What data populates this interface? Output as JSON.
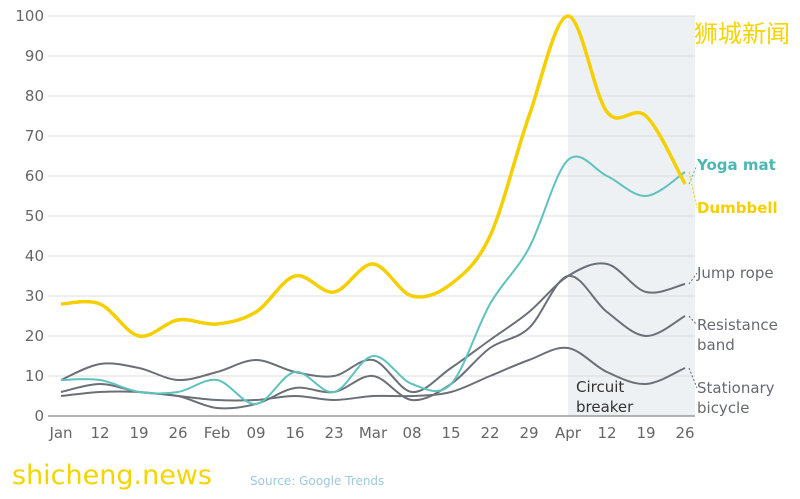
{
  "chart_data": {
    "type": "line",
    "title": "",
    "xlabel": "",
    "ylabel": "",
    "ylim": [
      0,
      100
    ],
    "yticks": [
      0,
      10,
      20,
      30,
      40,
      50,
      60,
      70,
      80,
      90,
      100
    ],
    "categories": [
      "Jan",
      "12",
      "19",
      "26",
      "Feb",
      "09",
      "16",
      "23",
      "Mar",
      "08",
      "15",
      "22",
      "29",
      "Apr",
      "12",
      "19",
      "26"
    ],
    "grid": true,
    "series": [
      {
        "name": "Dumbbell",
        "color": "#f5cf00",
        "width": 3.5,
        "values": [
          28,
          28,
          20,
          24,
          23,
          26,
          35,
          31,
          38,
          30,
          33,
          45,
          75,
          100,
          76,
          75,
          58
        ]
      },
      {
        "name": "Yoga mat",
        "color": "#5ec2bd",
        "width": 2,
        "values": [
          9,
          9,
          6,
          6,
          9,
          3,
          11,
          6,
          15,
          8,
          8,
          28,
          42,
          64,
          60,
          55,
          61
        ]
      },
      {
        "name": "Jump rope",
        "color": "#6b7078",
        "width": 2,
        "values": [
          9,
          13,
          12,
          9,
          11,
          14,
          11,
          10,
          14,
          6,
          12,
          19,
          26,
          35,
          38,
          31,
          33
        ]
      },
      {
        "name": "Resistance band",
        "color": "#6b7078",
        "width": 2,
        "values": [
          6,
          8,
          6,
          5,
          2,
          3,
          7,
          6,
          10,
          4,
          8,
          17,
          22,
          35,
          26,
          20,
          25
        ]
      },
      {
        "name": "Stationary bicycle",
        "color": "#6b7078",
        "width": 2,
        "values": [
          5,
          6,
          6,
          5,
          4,
          4,
          5,
          4,
          5,
          5,
          6,
          10,
          14,
          17,
          11,
          8,
          12
        ]
      }
    ],
    "legend_labels": [
      {
        "lines": [
          "Yoga mat"
        ],
        "color": "#4bb8b3"
      },
      {
        "lines": [
          "Dumbbell"
        ],
        "color": "#f5cf00"
      },
      {
        "lines": [
          "Jump rope"
        ],
        "color": "#666a70"
      },
      {
        "lines": [
          "Resistance",
          "band"
        ],
        "color": "#666a70"
      },
      {
        "lines": [
          "Stationary",
          "bicycle"
        ],
        "color": "#666a70"
      }
    ],
    "shaded_region": {
      "from": "Apr",
      "to": "26",
      "label_lines": [
        "Circuit",
        "breaker"
      ],
      "color": "#edf1f4"
    }
  },
  "source": "Source: Google Trends",
  "watermarks": {
    "cn": "狮城新闻",
    "en": "shicheng.news"
  }
}
